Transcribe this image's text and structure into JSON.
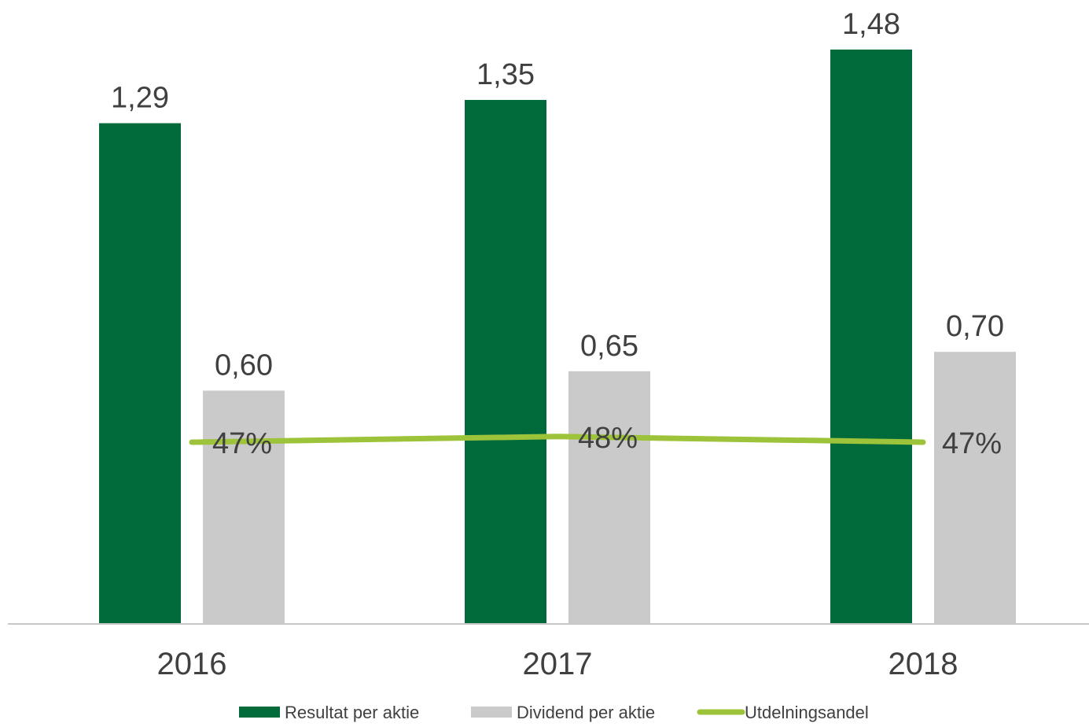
{
  "chart_data": {
    "type": "bar",
    "categories": [
      "2016",
      "2017",
      "2018"
    ],
    "series": [
      {
        "name": "Resultat per aktie",
        "kind": "bar",
        "color": "#006A3B",
        "values": [
          1.29,
          1.35,
          1.48
        ],
        "labels": [
          "1,29",
          "1,35",
          "1,48"
        ]
      },
      {
        "name": "Dividend per aktie",
        "kind": "bar",
        "color": "#CACACA",
        "values": [
          0.6,
          0.65,
          0.7
        ],
        "labels": [
          "0,60",
          "0,65",
          "0,70"
        ]
      },
      {
        "name": "Utdelningsandel",
        "kind": "line",
        "color": "#9DC33B",
        "values": [
          0.47,
          0.48,
          0.47
        ],
        "labels": [
          "47%",
          "48%",
          "47%"
        ]
      }
    ],
    "title": "",
    "xlabel": "",
    "ylabel": "",
    "ylim": [
      0,
      1.6
    ],
    "line_ylim": [
      0,
      0.8
    ],
    "grid": false,
    "legend_position": "bottom",
    "axis_color": "#C8C8C8",
    "label_color": "#404040"
  }
}
